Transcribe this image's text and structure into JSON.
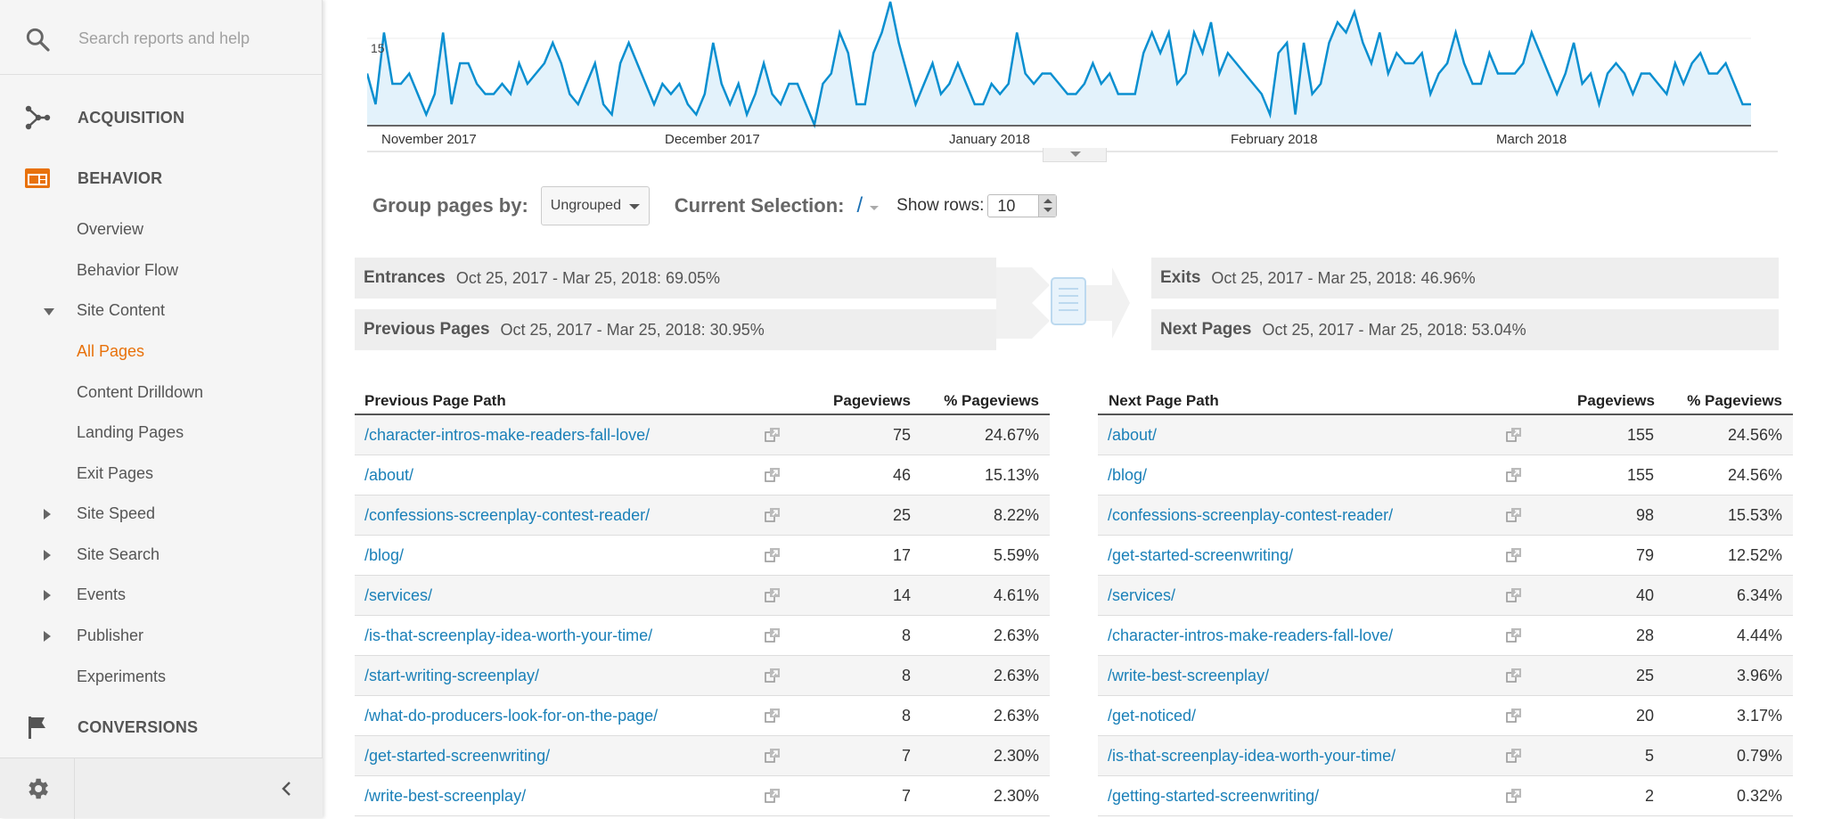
{
  "sidebar": {
    "search_placeholder": "Search reports and help",
    "sections": {
      "acquisition": "ACQUISITION",
      "behavior": "BEHAVIOR",
      "conversions": "CONVERSIONS"
    },
    "behavior_items": {
      "overview": "Overview",
      "behavior_flow": "Behavior Flow",
      "site_content": "Site Content",
      "all_pages": "All Pages",
      "content_drilldown": "Content Drilldown",
      "landing_pages": "Landing Pages",
      "exit_pages": "Exit Pages",
      "site_speed": "Site Speed",
      "site_search": "Site Search",
      "events": "Events",
      "publisher": "Publisher",
      "experiments": "Experiments"
    }
  },
  "chart": {
    "y_tick": "15",
    "x_labels": [
      "November 2017",
      "December 2017",
      "January 2018",
      "February 2018",
      "March 2018"
    ]
  },
  "chart_data": {
    "type": "area",
    "color": "#0a8fd0",
    "fill": "#e3f2fb",
    "x_labels": [
      "November 2017",
      "December 2017",
      "January 2018",
      "February 2018",
      "March 2018"
    ],
    "y_tick_label": "15",
    "values": [
      14,
      11,
      18,
      13,
      13,
      14,
      12,
      10,
      12,
      18,
      11,
      15,
      15,
      13,
      12,
      12,
      13,
      12,
      15,
      13,
      14,
      15,
      17,
      15,
      12,
      11,
      13,
      15,
      11,
      10,
      15,
      17,
      15,
      13,
      11,
      13,
      12,
      13,
      11,
      10,
      12,
      17,
      13,
      11,
      13,
      10,
      12,
      15,
      12,
      11,
      13,
      13,
      11,
      9,
      13,
      14,
      18,
      16,
      11,
      11,
      16,
      18,
      21,
      17,
      14,
      11,
      13,
      15,
      12,
      13,
      15,
      13,
      11,
      11,
      13,
      12,
      13,
      18,
      14,
      13,
      14,
      14,
      13,
      12,
      12,
      13,
      15,
      13,
      14,
      12,
      12,
      12,
      16,
      18,
      16,
      18,
      13,
      14,
      18,
      16,
      19,
      14,
      16,
      15,
      14,
      13,
      12,
      10,
      16,
      17,
      10,
      17,
      12,
      13,
      17,
      19,
      18,
      20,
      17,
      15,
      18,
      14,
      16,
      15,
      15,
      16,
      12,
      14,
      15,
      18,
      15,
      13,
      13,
      16,
      14,
      14,
      14,
      15,
      18,
      16,
      14,
      12,
      14,
      17,
      13,
      14,
      11,
      14,
      15,
      14,
      12,
      14,
      14,
      13,
      12,
      15,
      13,
      15,
      16,
      14,
      14,
      15,
      13,
      11,
      11
    ]
  },
  "controls": {
    "group_label": "Group pages by:",
    "group_value": "Ungrouped",
    "current_selection_label": "Current Selection:",
    "current_selection_value": "/",
    "show_rows_label": "Show rows:",
    "show_rows_value": "10"
  },
  "flow": {
    "entrances_label": "Entrances",
    "entrances_value": "Oct 25, 2017 - Mar 25, 2018: 69.05%",
    "previous_label": "Previous Pages",
    "previous_value": "Oct 25, 2017 - Mar 25, 2018: 30.95%",
    "exits_label": "Exits",
    "exits_value": "Oct 25, 2017 - Mar 25, 2018: 46.96%",
    "next_label": "Next Pages",
    "next_value": "Oct 25, 2017 - Mar 25, 2018: 53.04%"
  },
  "prev_table": {
    "headers": {
      "path": "Previous Page Path",
      "pageviews": "Pageviews",
      "pct": "% Pageviews"
    },
    "rows": [
      {
        "path": "/character-intros-make-readers-fall-love/",
        "pageviews": "75",
        "pct": "24.67%"
      },
      {
        "path": "/about/",
        "pageviews": "46",
        "pct": "15.13%"
      },
      {
        "path": "/confessions-screenplay-contest-reader/",
        "pageviews": "25",
        "pct": "8.22%"
      },
      {
        "path": "/blog/",
        "pageviews": "17",
        "pct": "5.59%"
      },
      {
        "path": "/services/",
        "pageviews": "14",
        "pct": "4.61%"
      },
      {
        "path": "/is-that-screenplay-idea-worth-your-time/",
        "pageviews": "8",
        "pct": "2.63%"
      },
      {
        "path": "/start-writing-screenplay/",
        "pageviews": "8",
        "pct": "2.63%"
      },
      {
        "path": "/what-do-producers-look-for-on-the-page/",
        "pageviews": "8",
        "pct": "2.63%"
      },
      {
        "path": "/get-started-screenwriting/",
        "pageviews": "7",
        "pct": "2.30%"
      },
      {
        "path": "/write-best-screenplay/",
        "pageviews": "7",
        "pct": "2.30%"
      }
    ]
  },
  "next_table": {
    "headers": {
      "path": "Next Page Path",
      "pageviews": "Pageviews",
      "pct": "% Pageviews"
    },
    "rows": [
      {
        "path": "/about/",
        "pageviews": "155",
        "pct": "24.56%"
      },
      {
        "path": "/blog/",
        "pageviews": "155",
        "pct": "24.56%"
      },
      {
        "path": "/confessions-screenplay-contest-reader/",
        "pageviews": "98",
        "pct": "15.53%"
      },
      {
        "path": "/get-started-screenwriting/",
        "pageviews": "79",
        "pct": "12.52%"
      },
      {
        "path": "/services/",
        "pageviews": "40",
        "pct": "6.34%"
      },
      {
        "path": "/character-intros-make-readers-fall-love/",
        "pageviews": "28",
        "pct": "4.44%"
      },
      {
        "path": "/write-best-screenplay/",
        "pageviews": "25",
        "pct": "3.96%"
      },
      {
        "path": "/get-noticed/",
        "pageviews": "20",
        "pct": "3.17%"
      },
      {
        "path": "/is-that-screenplay-idea-worth-your-time/",
        "pageviews": "5",
        "pct": "0.79%"
      },
      {
        "path": "/getting-started-screenwriting/",
        "pageviews": "2",
        "pct": "0.32%"
      }
    ]
  }
}
